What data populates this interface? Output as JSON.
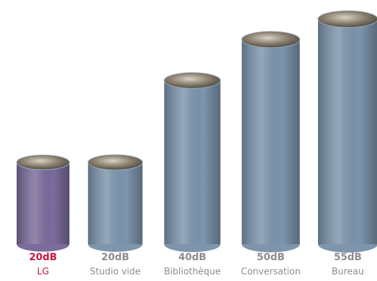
{
  "chart_data": {
    "type": "cylinder-bar",
    "categories": [
      "LG",
      "Studio vide",
      "Bibliothèque",
      "Conversation",
      "Bureau"
    ],
    "values": [
      20,
      20,
      40,
      50,
      55
    ],
    "value_labels": [
      "20dB",
      "20dB",
      "40dB",
      "50dB",
      "55dB"
    ],
    "colors": [
      "#7b6c9c",
      "#7d95ad",
      "#7d95ad",
      "#7d95ad",
      "#7d95ad"
    ],
    "label_colors": [
      "#c8143c",
      "#8c8c8c",
      "#8c8c8c",
      "#8c8c8c",
      "#8c8c8c"
    ]
  }
}
